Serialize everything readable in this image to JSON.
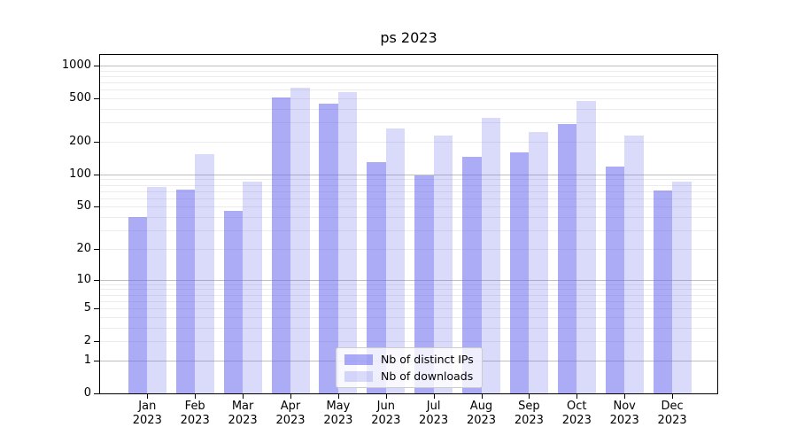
{
  "title": "ps 2023",
  "chart_data": {
    "type": "bar",
    "title": "ps 2023",
    "categories": [
      "Jan 2023",
      "Feb 2023",
      "Mar 2023",
      "Apr 2023",
      "May 2023",
      "Jun 2023",
      "Jul 2023",
      "Aug 2023",
      "Sep 2023",
      "Oct 2023",
      "Nov 2023",
      "Dec 2023"
    ],
    "series": [
      {
        "name": "Nb of distinct IPs",
        "color": "rgba(102,102,238,0.55)",
        "values": [
          40,
          73,
          46,
          510,
          450,
          129,
          97,
          146,
          160,
          290,
          119,
          71
        ]
      },
      {
        "name": "Nb of downloads",
        "color": "rgba(102,102,238,0.24)",
        "values": [
          77,
          154,
          85,
          630,
          575,
          265,
          228,
          334,
          248,
          474,
          228,
          85
        ]
      }
    ],
    "yscale": "log1p (position proportional to log10 of value+1, 0 at baseline)",
    "ylim": [
      0,
      1250
    ],
    "yticks": [
      0,
      1,
      2,
      5,
      10,
      20,
      50,
      100,
      200,
      500,
      1000
    ],
    "grid": {
      "orientation": "horizontal",
      "major_at": [
        1,
        10,
        100,
        1000
      ],
      "minor_at": "2-9 of each decade"
    },
    "legend_position": "lower center inside axes"
  },
  "colors": {
    "bar_distinct_ips": "rgba(102,102,238,0.55)",
    "bar_downloads": "rgba(102,102,238,0.24)",
    "major_grid": "#bfbfbf",
    "minor_grid": "#ececec",
    "spine": "#000000",
    "background": "#ffffff"
  }
}
